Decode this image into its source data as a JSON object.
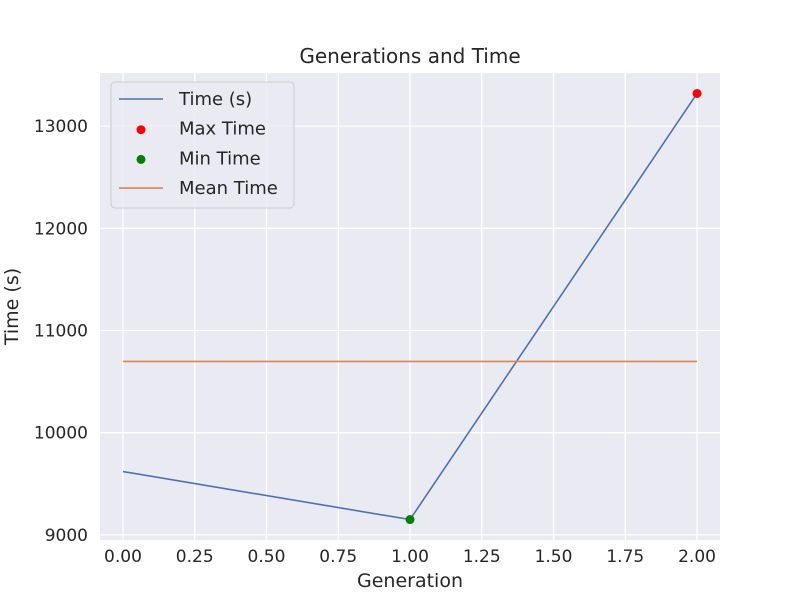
{
  "chart_data": {
    "type": "line",
    "title": "Generations and Time",
    "xlabel": "Generation",
    "ylabel": "Time (s)",
    "xlim": [
      -0.08,
      2.08
    ],
    "ylim": [
      8950,
      13520
    ],
    "x_ticks": [
      0.0,
      0.25,
      0.5,
      0.75,
      1.0,
      1.25,
      1.5,
      1.75,
      2.0
    ],
    "x_tick_labels": [
      "0.00",
      "0.25",
      "0.50",
      "0.75",
      "1.00",
      "1.25",
      "1.50",
      "1.75",
      "2.00"
    ],
    "y_ticks": [
      9000,
      10000,
      11000,
      12000,
      13000
    ],
    "y_tick_labels": [
      "9000",
      "10000",
      "11000",
      "12000",
      "13000"
    ],
    "grid": true,
    "legend_position": "top-left",
    "series": [
      {
        "name": "Time (s)",
        "kind": "line",
        "color": "#4c72b0",
        "x": [
          0,
          1,
          2
        ],
        "y": [
          9620,
          9150,
          13320
        ]
      },
      {
        "name": "Max Time",
        "kind": "scatter",
        "color": "#ff0000",
        "x": [
          2
        ],
        "y": [
          13320
        ]
      },
      {
        "name": "Min Time",
        "kind": "scatter",
        "color": "#008000",
        "x": [
          1
        ],
        "y": [
          9150
        ]
      },
      {
        "name": "Mean Time",
        "kind": "line",
        "color": "#dd8452",
        "x": [
          0,
          2
        ],
        "y": [
          10697,
          10697
        ]
      }
    ],
    "background": "#eaeaf2",
    "grid_color": "#ffffff"
  }
}
